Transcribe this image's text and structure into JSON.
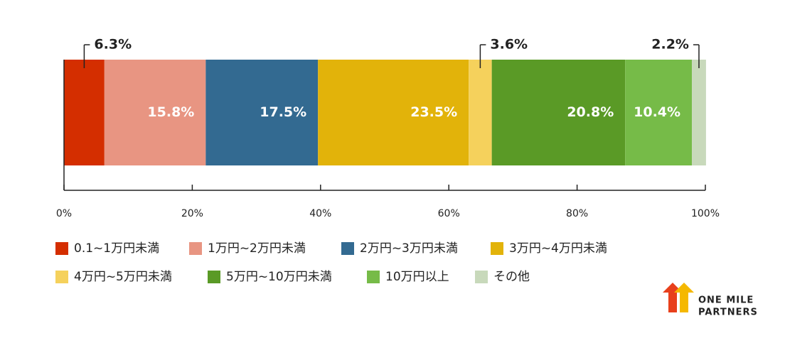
{
  "chart_data": {
    "type": "stacked-bar-100",
    "series": [
      {
        "name": "0.1~1万円未満",
        "color": "#d42e00",
        "values": [
          6.3
        ],
        "value_labels": [
          "6.3%"
        ]
      },
      {
        "name": "1万円~2万円未満",
        "color": "#e89582",
        "values": [
          15.8
        ],
        "value_labels": [
          "15.8%"
        ]
      },
      {
        "name": "2万円~3万円未満",
        "color": "#336a91",
        "values": [
          17.5
        ],
        "value_labels": [
          "17.5%"
        ]
      },
      {
        "name": "3万円~4万円未満",
        "color": "#e2b30a",
        "values": [
          23.5
        ],
        "value_labels": [
          "23.5%"
        ]
      },
      {
        "name": "4万円~5万円未満",
        "color": "#f5d15c",
        "values": [
          3.6
        ],
        "value_labels": [
          "3.6%"
        ]
      },
      {
        "name": "5万円~10万円未満",
        "color": "#5a9a26",
        "values": [
          20.8
        ],
        "value_labels": [
          "20.8%"
        ]
      },
      {
        "name": "10万円以上",
        "color": "#76bb48",
        "values": [
          10.4
        ],
        "value_labels": [
          "10.4%"
        ]
      },
      {
        "name": "その他",
        "color": "#c8d9bb",
        "values": [
          2.2
        ],
        "value_labels": [
          "2.2%"
        ]
      }
    ],
    "xlim": [
      0,
      100
    ],
    "xticks": [
      {
        "value": 0,
        "label": "0%"
      },
      {
        "value": 20,
        "label": "20%"
      },
      {
        "value": 40,
        "label": "40%"
      },
      {
        "value": 60,
        "label": "60%"
      },
      {
        "value": 80,
        "label": "80%"
      },
      {
        "value": 100,
        "label": "100%"
      }
    ]
  },
  "logo": {
    "lines": [
      "ONE MILE",
      "PARTNERS"
    ]
  }
}
